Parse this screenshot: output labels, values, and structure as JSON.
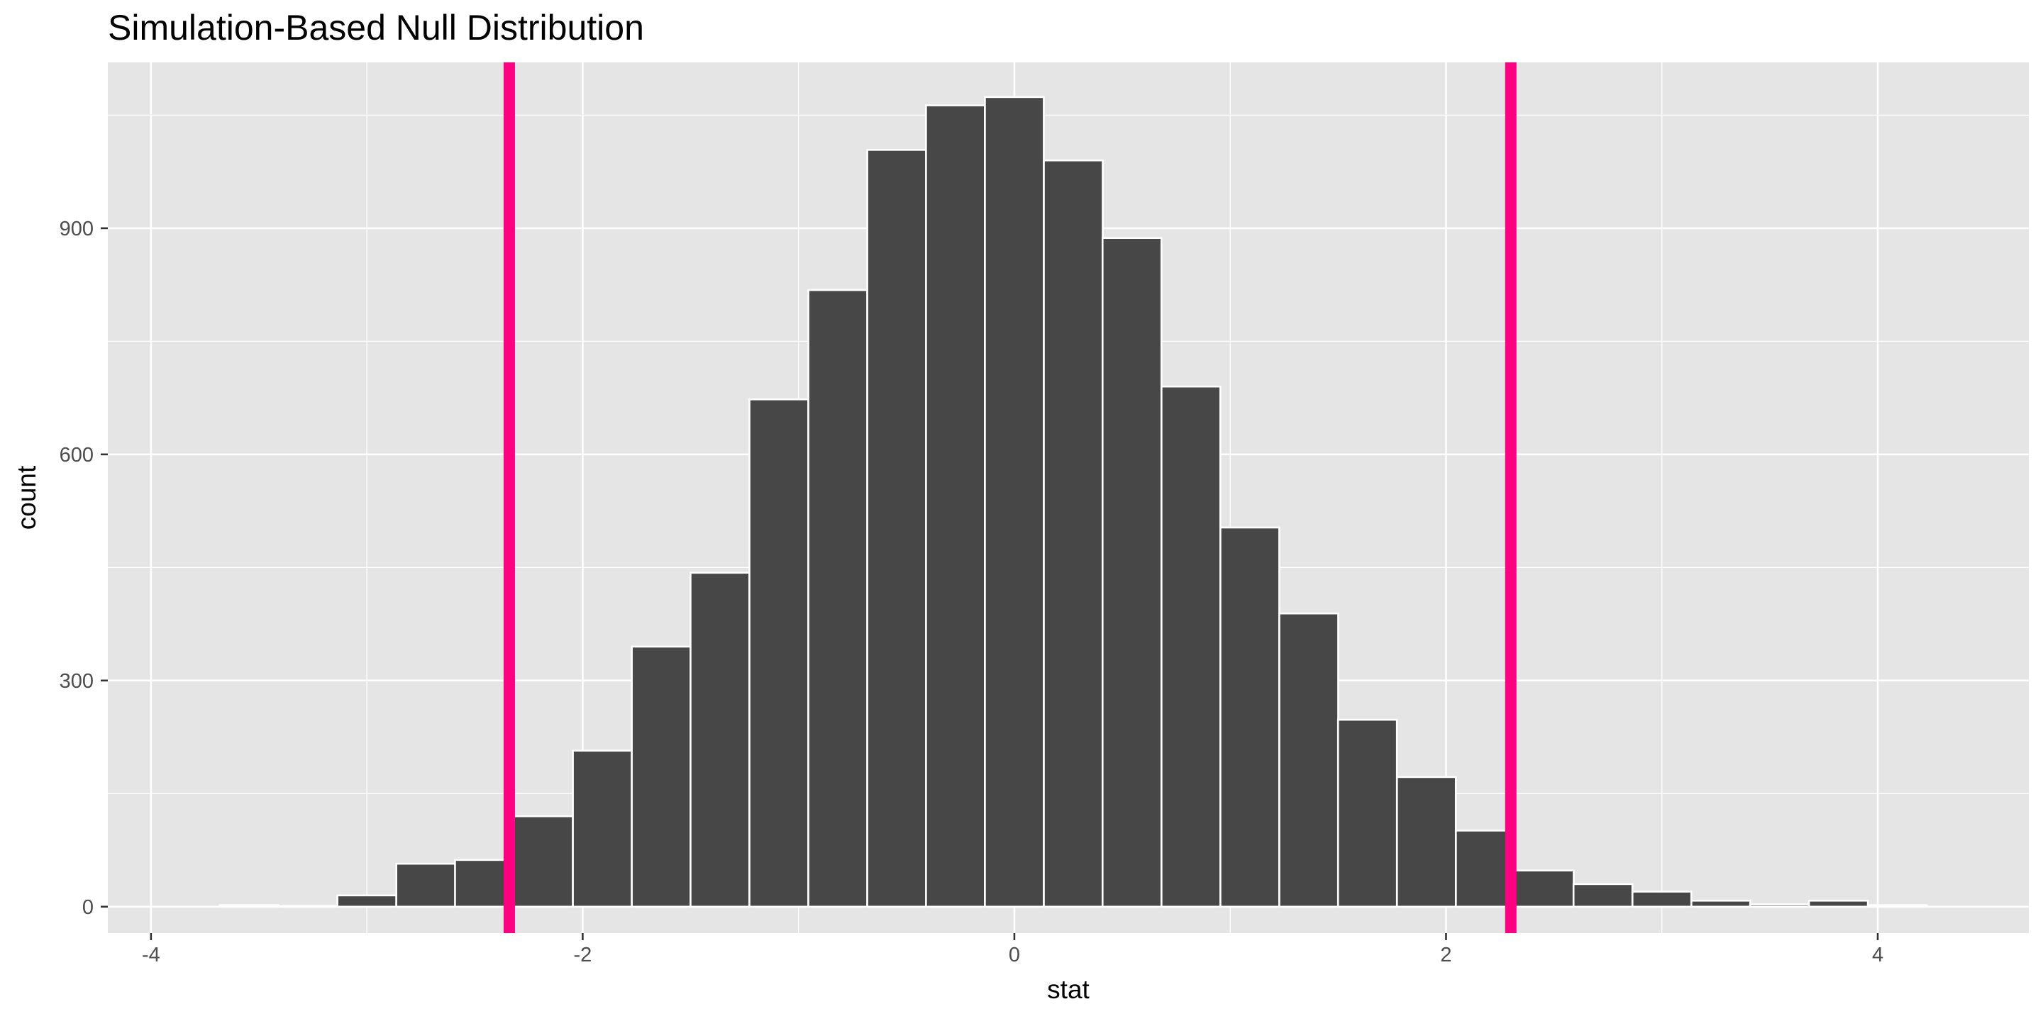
{
  "chart_data": {
    "type": "bar",
    "title": "Simulation-Based Null Distribution",
    "xlabel": "stat",
    "ylabel": "count",
    "xlim": [
      -4.2,
      4.7
    ],
    "ylim": [
      -35,
      1120
    ],
    "x_ticks": [
      -4,
      -2,
      0,
      2,
      4
    ],
    "x_tick_labels": [
      "-4",
      "-2",
      "0",
      "2",
      "4"
    ],
    "y_ticks": [
      0,
      300,
      600,
      900
    ],
    "y_tick_labels": [
      "0",
      "300",
      "600",
      "900"
    ],
    "grid": true,
    "bin_width": 0.2727,
    "bin_centers": [
      -3.545,
      -3.273,
      -3.0,
      -2.727,
      -2.455,
      -2.182,
      -1.909,
      -1.636,
      -1.364,
      -1.091,
      -0.818,
      -0.545,
      -0.273,
      0.0,
      0.273,
      0.545,
      0.818,
      1.091,
      1.364,
      1.636,
      1.909,
      2.182,
      2.455,
      2.727,
      3.0,
      3.273,
      3.545,
      3.818,
      4.091
    ],
    "values": [
      2,
      1,
      15,
      57,
      62,
      120,
      207,
      345,
      443,
      673,
      818,
      1004,
      1063,
      1074,
      990,
      887,
      690,
      503,
      389,
      248,
      172,
      101,
      48,
      30,
      20,
      8,
      3,
      8,
      2
    ],
    "reference_lines": [
      -2.34,
      2.3
    ],
    "colors": {
      "panel_background": "#e5e5e5",
      "grid": "#ffffff",
      "bar_fill": "#474747",
      "bar_outline": "#ffffff",
      "reference_line": "#ff0080"
    }
  }
}
